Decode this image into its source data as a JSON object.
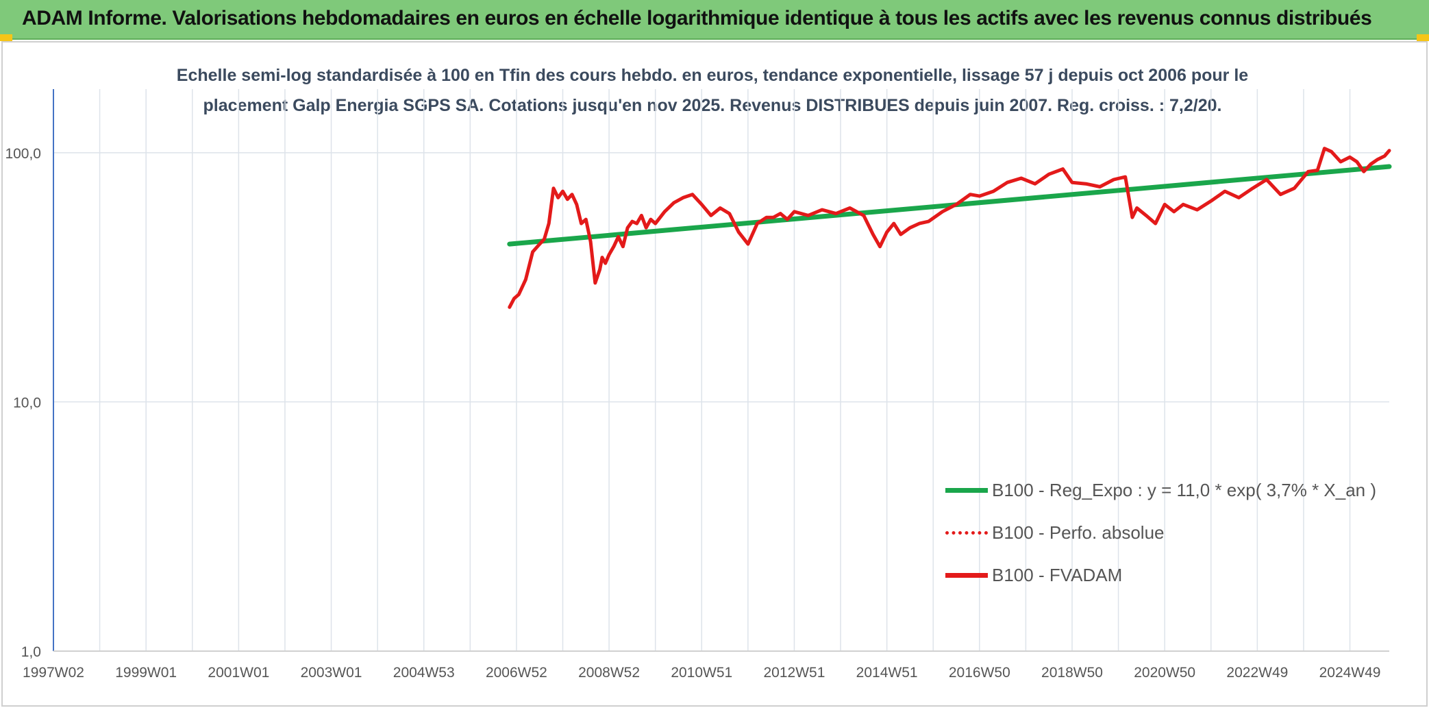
{
  "header": {
    "title": "ADAM Informe. Valorisations hebdomadaires en euros en échelle logarithmique identique à tous les actifs avec les revenus connus distribués"
  },
  "colors": {
    "header_bg": "#7fc97a",
    "trend": "#1aa64b",
    "series": "#e31a1a",
    "grid": "#dde3ea",
    "axis": "#4472c4",
    "title_text": "#3b4a5e"
  },
  "chart_data": {
    "type": "line",
    "title_line1": "Echelle semi-log standardisée à 100 en Tfin des cours hebdo. en euros, tendance exponentielle, lissage 57 j depuis oct 2006 pour le",
    "title_line2": "placement Galp Energia SGPS SA. Cotations jusqu'en nov 2025. Revenus DISTRIBUES depuis juin 2007. Reg. croiss. : 7,2/20.",
    "yscale": "log",
    "ylim": [
      1,
      180
    ],
    "y_ticks": [
      {
        "value": 1,
        "label": "1,0"
      },
      {
        "value": 10,
        "label": "10,0"
      },
      {
        "value": 100,
        "label": "100,0"
      }
    ],
    "xlim": [
      1997.0,
      2025.85
    ],
    "x_ticks": [
      {
        "value": 1997.0,
        "label": "1997W02"
      },
      {
        "value": 1999.0,
        "label": "1999W01"
      },
      {
        "value": 2001.0,
        "label": "2001W01"
      },
      {
        "value": 2003.0,
        "label": "2003W01"
      },
      {
        "value": 2005.0,
        "label": "2004W53"
      },
      {
        "value": 2007.0,
        "label": "2006W52"
      },
      {
        "value": 2009.0,
        "label": "2008W52"
      },
      {
        "value": 2011.0,
        "label": "2010W51"
      },
      {
        "value": 2013.0,
        "label": "2012W51"
      },
      {
        "value": 2015.0,
        "label": "2014W51"
      },
      {
        "value": 2017.0,
        "label": "2016W50"
      },
      {
        "value": 2019.0,
        "label": "2018W50"
      },
      {
        "value": 2021.0,
        "label": "2020W50"
      },
      {
        "value": 2023.0,
        "label": "2022W49"
      },
      {
        "value": 2025.0,
        "label": "2024W49"
      }
    ],
    "grid": true,
    "legend_position": "lower-right",
    "series": [
      {
        "name": "B100 - Reg_Expo : y = 11,0 * exp( 3,7% *  X_an )",
        "style": "solid-green",
        "x": [
          2006.85,
          2025.85
        ],
        "y": [
          43,
          88
        ]
      },
      {
        "name": "B100 - Perfo. absolue",
        "style": "dotted-red",
        "x": [],
        "y": []
      },
      {
        "name": "B100 - FVADAM",
        "style": "solid-red",
        "x": [
          2006.85,
          2006.95,
          2007.05,
          2007.2,
          2007.35,
          2007.5,
          2007.6,
          2007.7,
          2007.8,
          2007.9,
          2008.0,
          2008.1,
          2008.2,
          2008.3,
          2008.4,
          2008.5,
          2008.6,
          2008.7,
          2008.8,
          2008.85,
          2008.92,
          2009.0,
          2009.1,
          2009.2,
          2009.3,
          2009.4,
          2009.5,
          2009.6,
          2009.7,
          2009.8,
          2009.9,
          2010.0,
          2010.2,
          2010.4,
          2010.6,
          2010.8,
          2011.0,
          2011.2,
          2011.4,
          2011.6,
          2011.8,
          2012.0,
          2012.2,
          2012.4,
          2012.55,
          2012.7,
          2012.85,
          2013.0,
          2013.3,
          2013.6,
          2013.9,
          2014.2,
          2014.5,
          2014.7,
          2014.85,
          2015.0,
          2015.15,
          2015.3,
          2015.5,
          2015.7,
          2015.9,
          2016.2,
          2016.5,
          2016.8,
          2017.0,
          2017.3,
          2017.6,
          2017.9,
          2018.2,
          2018.5,
          2018.8,
          2019.0,
          2019.3,
          2019.6,
          2019.9,
          2020.15,
          2020.3,
          2020.4,
          2020.6,
          2020.8,
          2021.0,
          2021.2,
          2021.4,
          2021.7,
          2022.0,
          2022.3,
          2022.6,
          2022.9,
          2023.2,
          2023.5,
          2023.8,
          2024.1,
          2024.3,
          2024.45,
          2024.6,
          2024.8,
          2025.0,
          2025.15,
          2025.3,
          2025.45,
          2025.6,
          2025.75,
          2025.85
        ],
        "y": [
          24,
          26,
          27,
          31,
          40,
          43,
          45,
          52,
          72,
          66,
          70,
          65,
          68,
          62,
          52,
          54,
          44,
          30,
          34,
          38,
          36,
          39,
          42,
          46,
          42,
          50,
          53,
          52,
          56,
          50,
          54,
          52,
          58,
          63,
          66,
          68,
          62,
          56,
          60,
          57,
          48,
          43,
          52,
          55,
          55,
          57,
          54,
          58,
          56,
          59,
          57,
          60,
          56,
          47,
          42,
          48,
          52,
          47,
          50,
          52,
          53,
          58,
          62,
          68,
          67,
          70,
          76,
          79,
          75,
          82,
          86,
          76,
          75,
          73,
          78,
          80,
          55,
          60,
          56,
          52,
          62,
          58,
          62,
          59,
          64,
          70,
          66,
          72,
          78,
          68,
          72,
          84,
          85,
          104,
          101,
          92,
          96,
          92,
          84,
          90,
          94,
          97,
          102
        ]
      }
    ]
  }
}
